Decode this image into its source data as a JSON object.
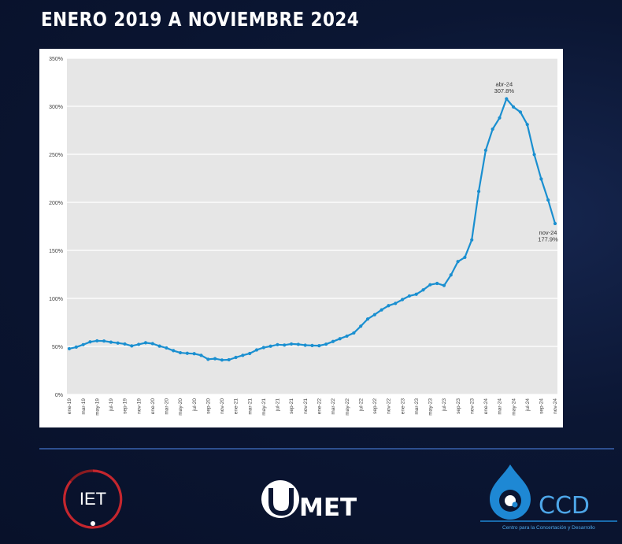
{
  "header": {
    "title": "ENERO 2019 A NOVIEMBRE 2024"
  },
  "logos": {
    "iet": "IET",
    "umet": "MET",
    "ccd": "CCD",
    "ccd_tagline": "Centro para la Concertación y Desarrollo"
  },
  "colors": {
    "series": "#1a8fd0",
    "plot_bg": "#e6e6e6",
    "background": "#0b1633"
  },
  "chart_data": {
    "type": "line",
    "title": "",
    "xlabel": "",
    "ylabel": "",
    "ylim": [
      0,
      350
    ],
    "yticks": [
      0,
      50,
      100,
      150,
      200,
      250,
      300,
      350
    ],
    "ytick_labels": [
      "0%",
      "50%",
      "100%",
      "150%",
      "200%",
      "250%",
      "300%",
      "350%"
    ],
    "grid": true,
    "x": [
      "ene-19",
      "feb-19",
      "mar-19",
      "abr-19",
      "may-19",
      "jun-19",
      "jul-19",
      "ago-19",
      "sep-19",
      "oct-19",
      "nov-19",
      "dic-19",
      "ene-20",
      "feb-20",
      "mar-20",
      "abr-20",
      "may-20",
      "jun-20",
      "jul-20",
      "ago-20",
      "sep-20",
      "oct-20",
      "nov-20",
      "dic-20",
      "ene-21",
      "feb-21",
      "mar-21",
      "abr-21",
      "may-21",
      "jun-21",
      "jul-21",
      "ago-21",
      "sep-21",
      "oct-21",
      "nov-21",
      "dic-21",
      "ene-22",
      "feb-22",
      "mar-22",
      "abr-22",
      "may-22",
      "jun-22",
      "jul-22",
      "ago-22",
      "sep-22",
      "oct-22",
      "nov-22",
      "dic-22",
      "ene-23",
      "feb-23",
      "mar-23",
      "abr-23",
      "may-23",
      "jun-23",
      "jul-23",
      "ago-23",
      "sep-23",
      "oct-23",
      "nov-23",
      "dic-23",
      "ene-24",
      "feb-24",
      "mar-24",
      "abr-24",
      "may-24",
      "jun-24",
      "jul-24",
      "ago-24",
      "sep-24",
      "oct-24",
      "nov-24"
    ],
    "xtick_labels": [
      "ene-19",
      "mar-19",
      "may-19",
      "jul-19",
      "sep-19",
      "nov-19",
      "ene-20",
      "mar-20",
      "may-20",
      "jul-20",
      "sep-20",
      "nov-20",
      "ene-21",
      "mar-21",
      "may-21",
      "jul-21",
      "sep-21",
      "nov-21",
      "ene-22",
      "mar-22",
      "may-22",
      "jul-22",
      "sep-22",
      "nov-22",
      "ene-23",
      "mar-23",
      "may-23",
      "jul-23",
      "sep-23",
      "nov-23",
      "ene-24",
      "mar-24",
      "may-24",
      "jul-24",
      "sep-24",
      "nov-24"
    ],
    "series": [
      {
        "values": [
          47.6,
          49.3,
          51.8,
          54.7,
          55.8,
          55.6,
          54.4,
          53.5,
          52.5,
          50.5,
          52.1,
          53.8,
          52.9,
          50.3,
          48.4,
          45.6,
          43.4,
          42.8,
          42.4,
          40.7,
          36.6,
          37.2,
          35.8,
          36.1,
          38.5,
          40.7,
          42.6,
          46.3,
          48.8,
          50.2,
          51.8,
          51.4,
          52.5,
          52.1,
          51.2,
          50.9,
          50.7,
          52.3,
          55.1,
          58.0,
          60.7,
          64.0,
          71.0,
          78.5,
          83.0,
          88.0,
          92.4,
          94.8,
          98.8,
          102.5,
          104.3,
          108.8,
          114.2,
          115.6,
          113.4,
          124.4,
          138.3,
          142.7,
          160.9,
          211.4,
          254.2,
          276.2,
          287.9,
          307.8,
          299.3,
          294.0,
          281.0,
          249.7,
          224.3,
          202.4,
          177.9
        ],
        "annotations": [
          {
            "x": "abr-24",
            "label": "abr-24",
            "value_label": "307.8%"
          },
          {
            "x": "nov-24",
            "label": "nov-24",
            "value_label": "177.9%"
          }
        ]
      }
    ]
  }
}
